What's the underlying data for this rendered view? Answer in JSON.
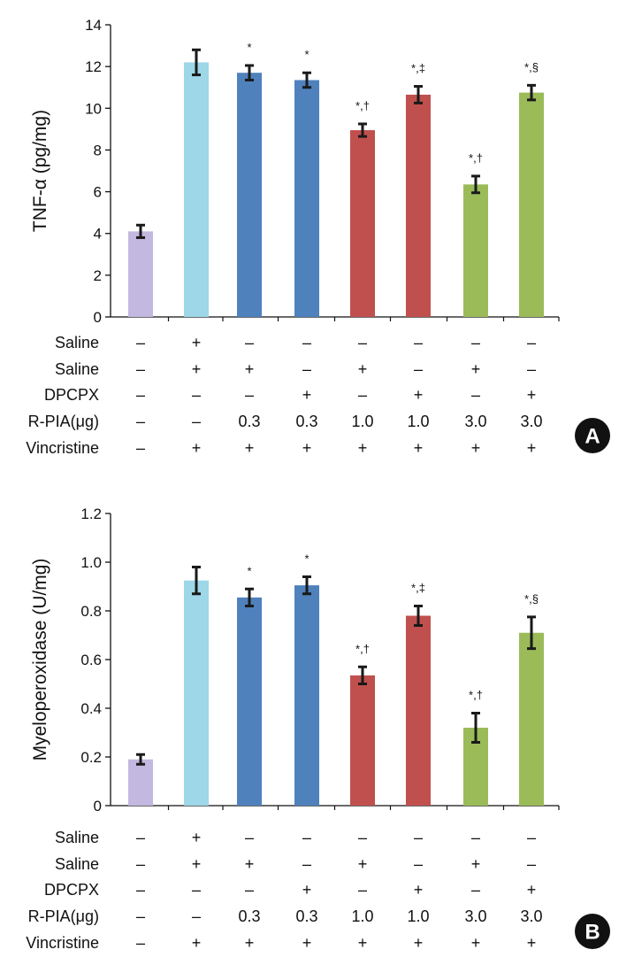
{
  "chart_data": [
    {
      "type": "bar",
      "panel_label": "A",
      "ylabel": "TNF-α (pg/mg)",
      "ylim": [
        0,
        14
      ],
      "yticks": [
        0,
        2,
        4,
        6,
        8,
        10,
        12,
        14
      ],
      "values": [
        4.1,
        12.2,
        11.7,
        11.35,
        8.95,
        10.65,
        6.35,
        10.75
      ],
      "errors": [
        0.3,
        0.6,
        0.35,
        0.35,
        0.3,
        0.4,
        0.4,
        0.35
      ],
      "significance": [
        "",
        "",
        "*",
        "*",
        "*,†",
        "*,‡",
        "*,†",
        "*,§"
      ],
      "colors": [
        "#c3b8e0",
        "#9dd7e8",
        "#4f81bd",
        "#4f81bd",
        "#c0504d",
        "#c0504d",
        "#9bbb59",
        "#9bbb59"
      ],
      "conditions": [
        {
          "label": "Saline",
          "values": [
            "–",
            "+",
            "–",
            "–",
            "–",
            "–",
            "–",
            "–"
          ]
        },
        {
          "label": "Saline",
          "values": [
            "–",
            "+",
            "+",
            "–",
            "+",
            "–",
            "+",
            "–"
          ]
        },
        {
          "label": "DPCPX",
          "values": [
            "–",
            "–",
            "–",
            "+",
            "–",
            "+",
            "–",
            "+"
          ]
        },
        {
          "label": "R-PIA(μg)",
          "values": [
            "–",
            "–",
            "0.3",
            "0.3",
            "1.0",
            "1.0",
            "3.0",
            "3.0"
          ]
        },
        {
          "label": "Vincristine",
          "values": [
            "–",
            "+",
            "+",
            "+",
            "+",
            "+",
            "+",
            "+"
          ]
        }
      ]
    },
    {
      "type": "bar",
      "panel_label": "B",
      "ylabel": "Myeloperoxidase (U/mg)",
      "ylim": [
        0,
        1.2
      ],
      "yticks": [
        "0",
        "0.2",
        "0.4",
        "0.6",
        "0.8",
        "1.0",
        "1.2"
      ],
      "values": [
        0.19,
        0.925,
        0.855,
        0.905,
        0.535,
        0.78,
        0.32,
        0.71
      ],
      "errors": [
        0.02,
        0.055,
        0.035,
        0.035,
        0.035,
        0.04,
        0.06,
        0.065
      ],
      "significance": [
        "",
        "",
        "*",
        "*",
        "*,†",
        "*,‡",
        "*,†",
        "*,§"
      ],
      "colors": [
        "#c3b8e0",
        "#9dd7e8",
        "#4f81bd",
        "#4f81bd",
        "#c0504d",
        "#c0504d",
        "#9bbb59",
        "#9bbb59"
      ],
      "conditions": [
        {
          "label": "Saline",
          "values": [
            "–",
            "+",
            "–",
            "–",
            "–",
            "–",
            "–",
            "–"
          ]
        },
        {
          "label": "Saline",
          "values": [
            "–",
            "+",
            "+",
            "–",
            "+",
            "–",
            "+",
            "–"
          ]
        },
        {
          "label": "DPCPX",
          "values": [
            "–",
            "–",
            "–",
            "+",
            "–",
            "+",
            "–",
            "+"
          ]
        },
        {
          "label": "R-PIA(μg)",
          "values": [
            "–",
            "–",
            "0.3",
            "0.3",
            "1.0",
            "1.0",
            "3.0",
            "3.0"
          ]
        },
        {
          "label": "Vincristine",
          "values": [
            "–",
            "+",
            "+",
            "+",
            "+",
            "+",
            "+",
            "+"
          ]
        }
      ]
    }
  ]
}
